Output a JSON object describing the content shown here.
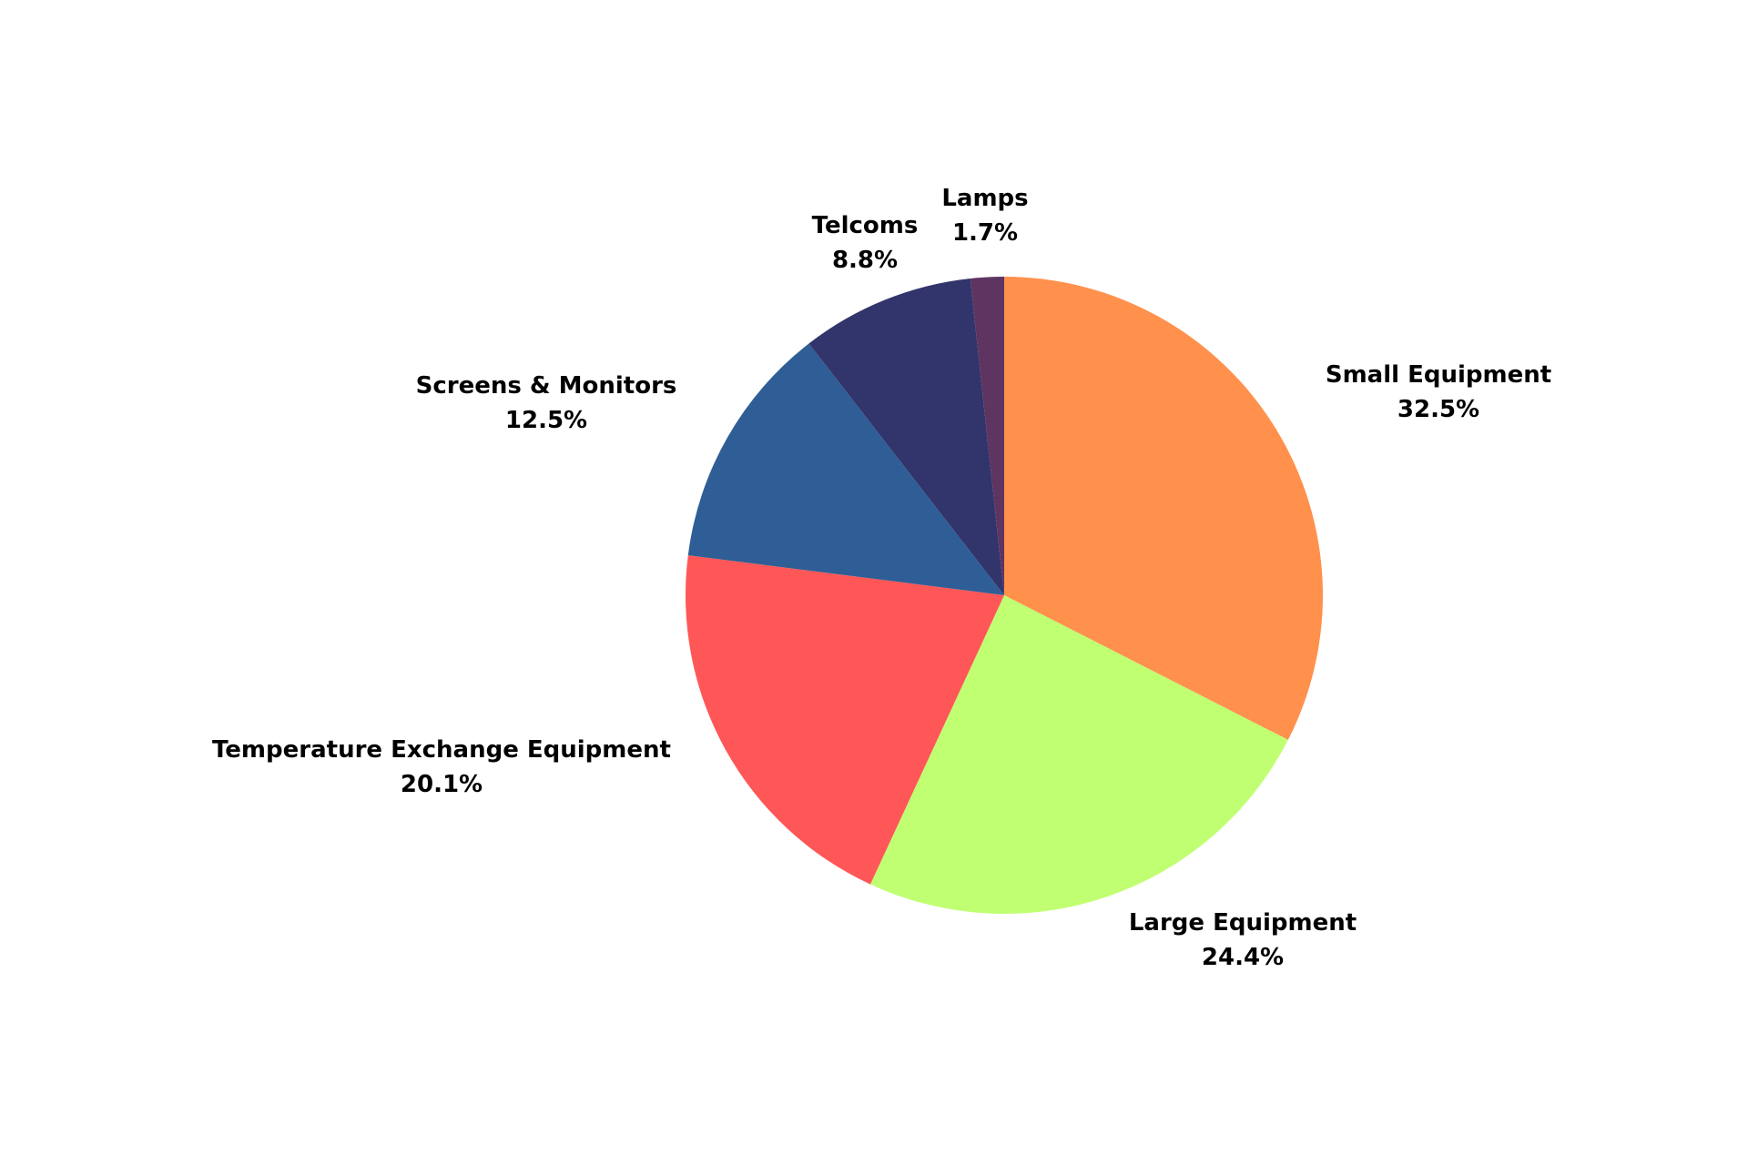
{
  "chart_data": {
    "type": "pie",
    "title": "",
    "start": "12 o'clock",
    "direction": "clockwise",
    "slices": [
      {
        "label": "Small Equipment",
        "value": 32.5,
        "value_label": "32.5%",
        "color": "#FF914D"
      },
      {
        "label": "Large Equipment",
        "value": 24.4,
        "value_label": "24.4%",
        "color": "#C1FF72"
      },
      {
        "label": "Temperature Exchange Equipment",
        "value": 20.1,
        "value_label": "20.1%",
        "color": "#FF5757"
      },
      {
        "label": "Screens & Monitors",
        "value": 12.5,
        "value_label": "12.5%",
        "color": "#2F5E96"
      },
      {
        "label": "Telcoms",
        "value": 8.8,
        "value_label": "8.8%",
        "color": "#32346C"
      },
      {
        "label": "Lamps",
        "value": 1.7,
        "value_label": "1.7%",
        "color": "#5E3460"
      }
    ]
  }
}
